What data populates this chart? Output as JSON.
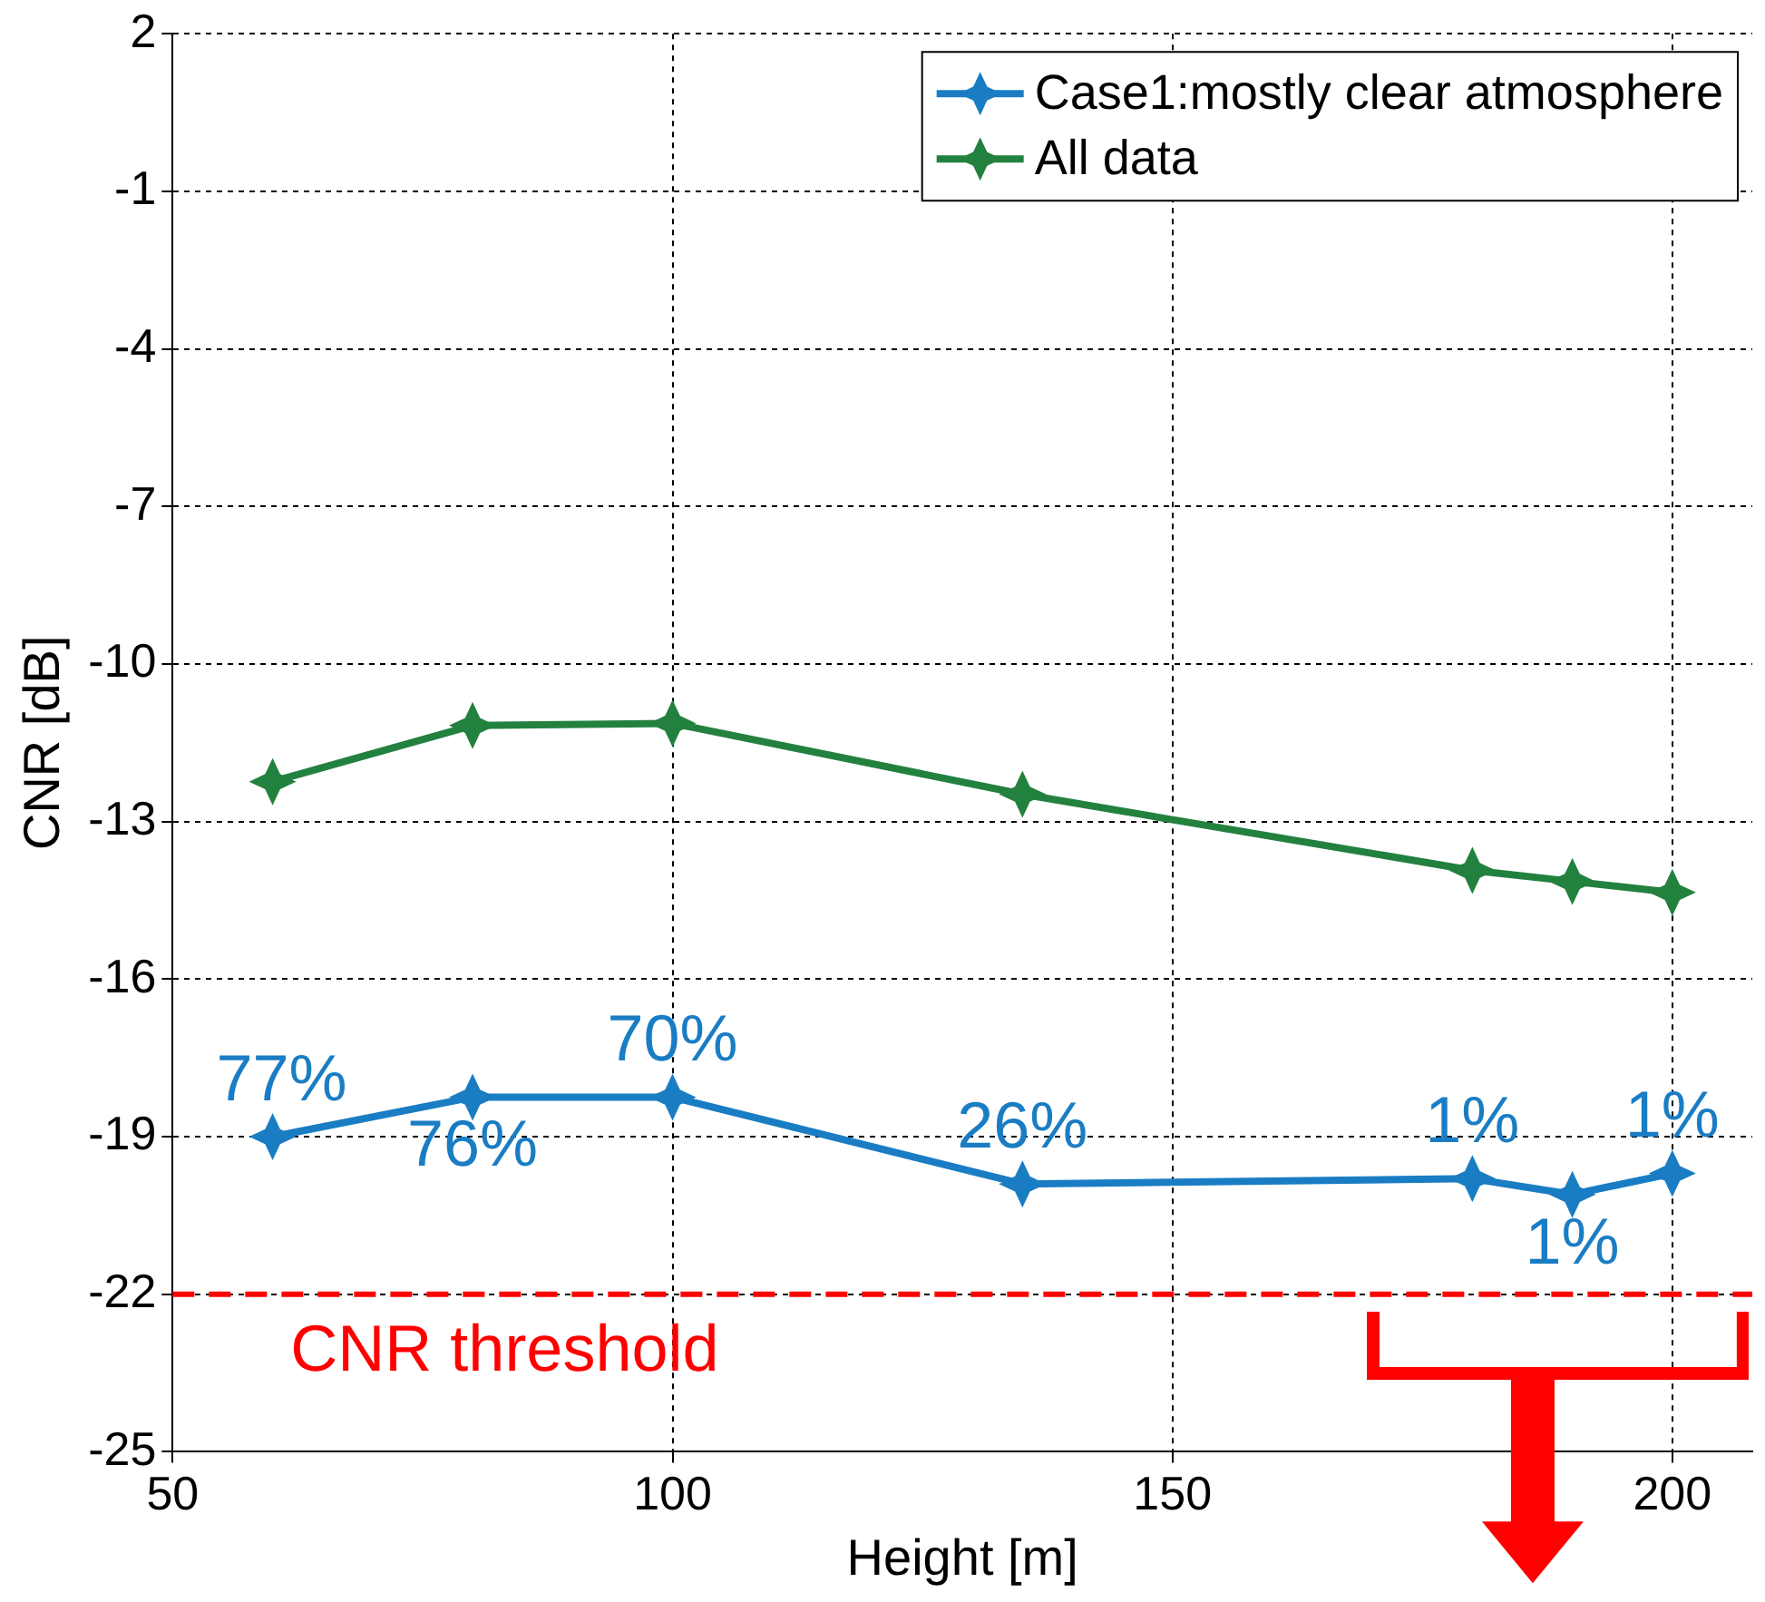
{
  "chart_data": {
    "type": "line",
    "xlabel": "Height [m]",
    "ylabel": "CNR [dB]",
    "x": [
      60,
      80,
      100,
      135,
      180,
      190,
      200
    ],
    "series": [
      {
        "name": "Case1:mostly clear atmosphere",
        "color": "#1a7dc4",
        "values": [
          -19.0,
          -18.25,
          -18.25,
          -19.9,
          -19.8,
          -20.1,
          -19.7
        ]
      },
      {
        "name": "All data",
        "color": "#23813f",
        "values": [
          -12.24,
          -11.17,
          -11.13,
          -12.48,
          -13.93,
          -14.14,
          -14.35
        ]
      }
    ],
    "annotations": [
      {
        "text": "77%",
        "x": 60,
        "y": -19.0
      },
      {
        "text": "76%",
        "x": 80,
        "y": -18.25
      },
      {
        "text": "70%",
        "x": 100,
        "y": -18.25
      },
      {
        "text": "26%",
        "x": 135,
        "y": -19.9
      },
      {
        "text": "1%",
        "x": 180,
        "y": -19.8
      },
      {
        "text": "1%",
        "x": 190,
        "y": -20.1
      },
      {
        "text": "1%",
        "x": 200,
        "y": -19.7
      }
    ],
    "xlim": [
      50,
      208
    ],
    "xticks": [
      50,
      100,
      150,
      200
    ],
    "ylim": [
      -25,
      2
    ],
    "yticks": [
      2,
      -1,
      -4,
      -7,
      -10,
      -13,
      -16,
      -19,
      -22,
      -25
    ],
    "ref_lines": [
      {
        "axis": "y",
        "value": -22,
        "label": "CNR threshold",
        "color": "#ff0000",
        "line_style": "dashed"
      }
    ],
    "grid": true,
    "legend": "top right",
    "marker": "star",
    "line_style": "solid"
  }
}
